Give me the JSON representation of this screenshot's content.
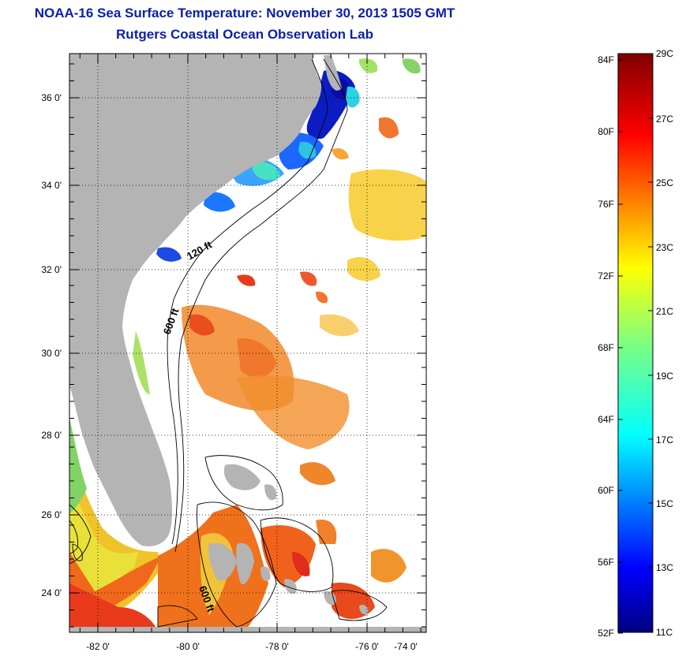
{
  "header": {
    "title": "NOAA-16 Sea Surface Temperature:  November 30, 2013 1505 GMT",
    "subtitle": "Rutgers Coastal Ocean Observation Lab"
  },
  "map": {
    "lat_labels": [
      "36 0'",
      "34 0'",
      "32 0'",
      "30 0'",
      "28 0'",
      "26 0'",
      "24 0'"
    ],
    "lon_labels": [
      "-82 0'",
      "-80 0'",
      "-78 0'",
      "-76 0'",
      "-74 0'"
    ],
    "contour_labels": [
      "120 ft",
      "600 ft",
      "600 ft"
    ],
    "land_color": "#b4b4b4",
    "ocean_nodata_color": "#ffffff"
  },
  "colorbar": {
    "fahrenheit_labels": [
      "84F",
      "80F",
      "76F",
      "72F",
      "68F",
      "64F",
      "60F",
      "56F",
      "52F"
    ],
    "celsius_labels": [
      "29C",
      "27C",
      "25C",
      "23C",
      "21C",
      "19C",
      "17C",
      "15C",
      "13C",
      "11C"
    ],
    "colormap": "jet"
  }
}
